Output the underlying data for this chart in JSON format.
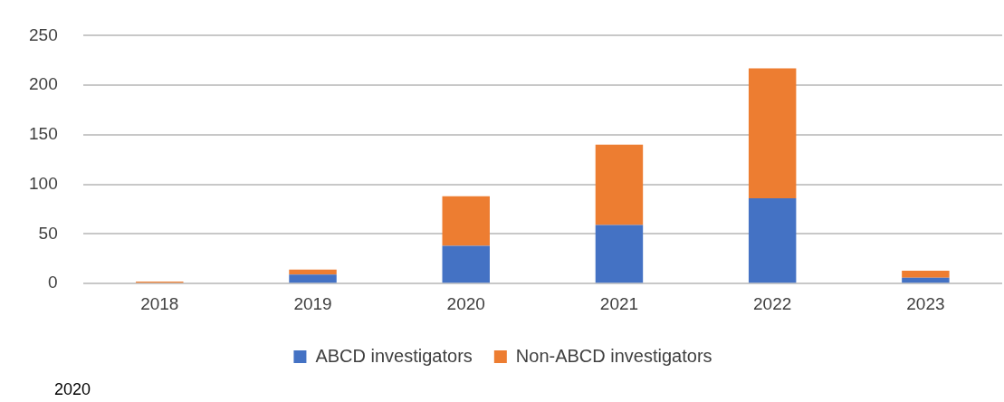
{
  "chart_data": {
    "type": "bar",
    "stacked": true,
    "categories": [
      "2018",
      "2019",
      "2020",
      "2021",
      "2022",
      "2023"
    ],
    "series": [
      {
        "name": "ABCD investigators",
        "color": "#4472c4",
        "values": [
          0,
          9,
          38,
          59,
          86,
          6
        ]
      },
      {
        "name": "Non-ABCD investigators",
        "color": "#ed7d31",
        "values": [
          2,
          5,
          50,
          81,
          131,
          7
        ]
      }
    ],
    "ylim": [
      0,
      250
    ],
    "yticks": [
      0,
      50,
      100,
      150,
      200,
      250
    ],
    "grid": "y",
    "legend": "bottom",
    "annotations": [
      "2020"
    ]
  }
}
